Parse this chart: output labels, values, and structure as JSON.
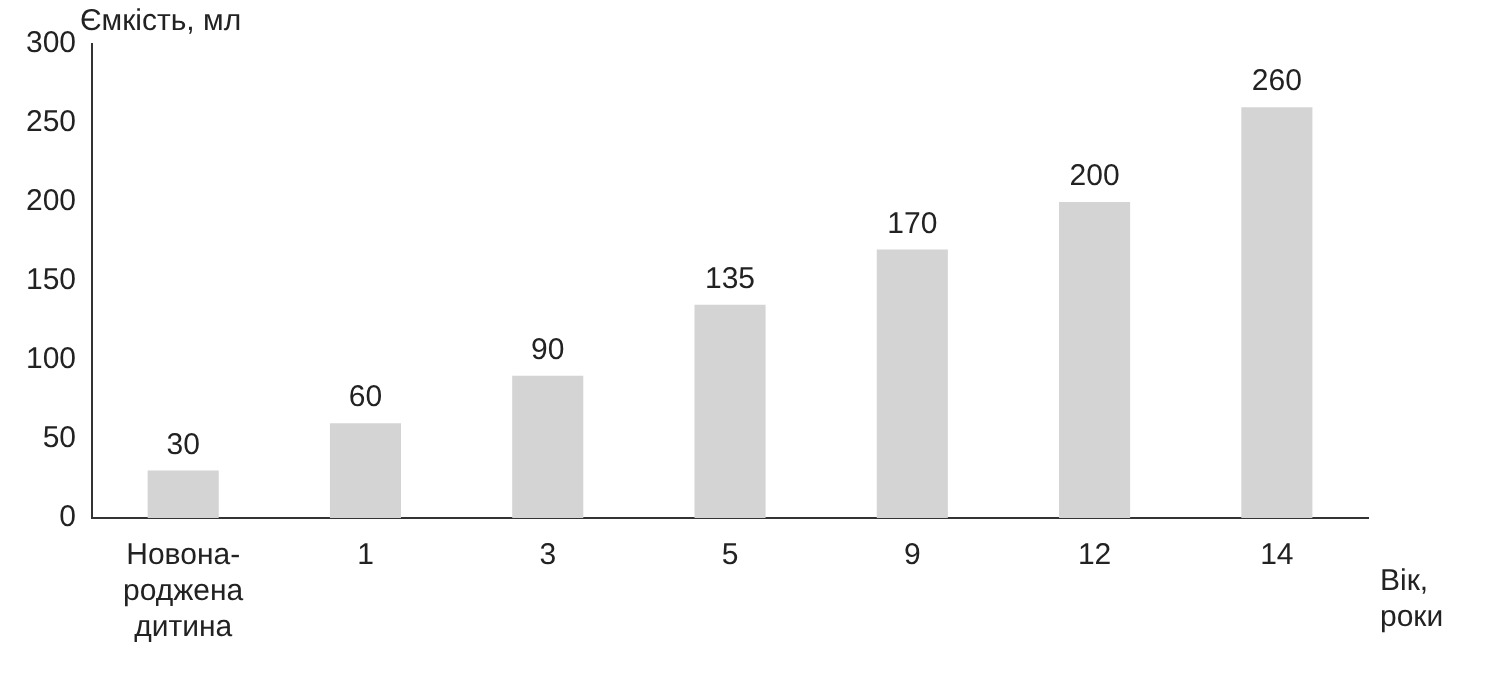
{
  "chart_data": {
    "type": "bar",
    "xlabel": "Вік,\nроки",
    "ylabel": "Ємкість, мл",
    "categories": [
      "Новона-\nроджена\nдитина",
      "1",
      "3",
      "5",
      "9",
      "12",
      "14"
    ],
    "values": [
      30,
      60,
      90,
      135,
      170,
      200,
      260
    ],
    "color": "#d4d4d4",
    "ylim": [
      0,
      300
    ],
    "yticks": [
      0,
      50,
      100,
      150,
      200,
      250,
      300
    ],
    "grid": false,
    "legend": false,
    "data_labels": true
  }
}
